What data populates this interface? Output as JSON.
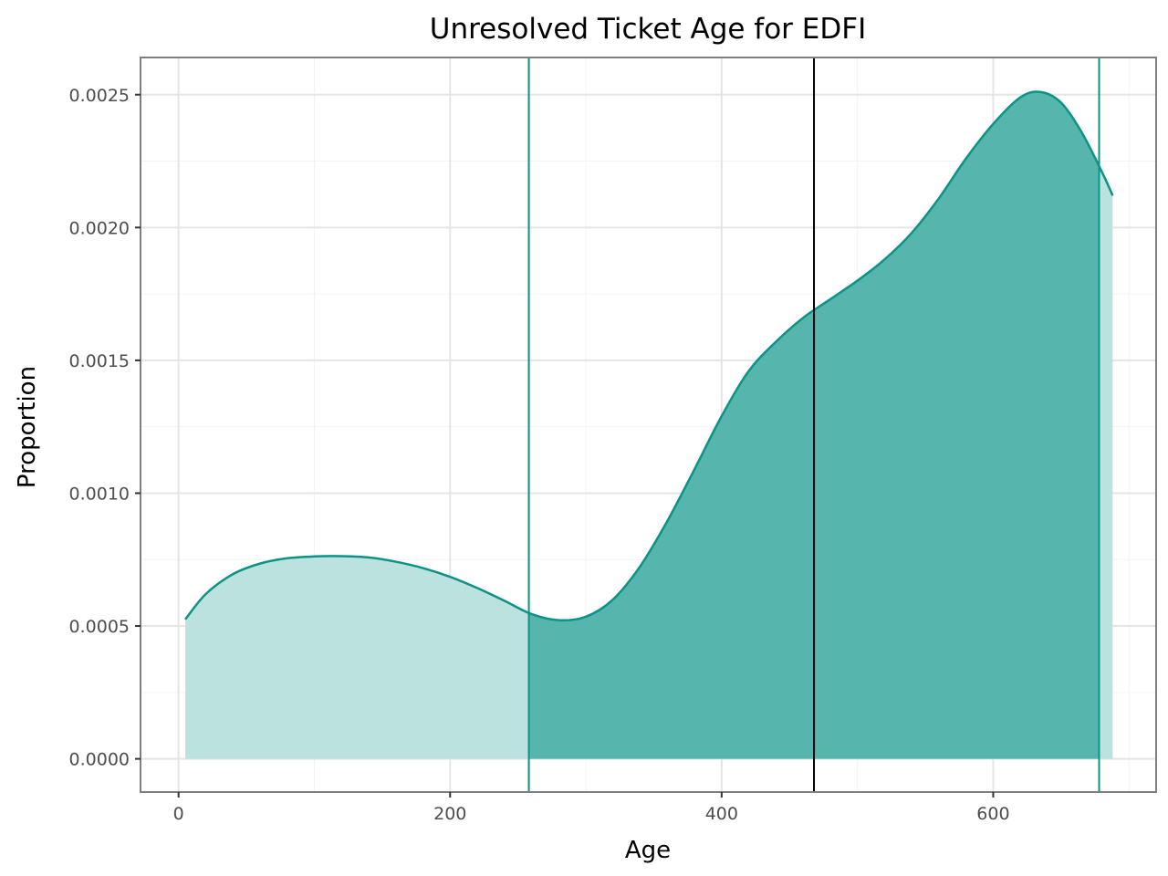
{
  "chart_data": {
    "type": "area",
    "title": "Unresolved Ticket Age for EDFI",
    "xlabel": "Age",
    "ylabel": "Proportion",
    "xlim": [
      -28,
      720
    ],
    "ylim": [
      -0.000125,
      0.00264
    ],
    "x_ticks": [
      0,
      200,
      400,
      600
    ],
    "x_tick_labels": [
      "0",
      "200",
      "400",
      "600"
    ],
    "y_ticks": [
      0,
      0.0005,
      0.001,
      0.0015,
      0.002,
      0.0025
    ],
    "y_tick_labels": [
      "0.0000",
      "0.0005",
      "0.0010",
      "0.0015",
      "0.0020",
      "0.0025"
    ],
    "grid": true,
    "density": {
      "x": [
        5,
        20,
        40,
        60,
        80,
        100,
        120,
        140,
        160,
        180,
        200,
        220,
        240,
        260,
        280,
        300,
        320,
        340,
        360,
        380,
        400,
        420,
        440,
        460,
        480,
        500,
        520,
        540,
        560,
        580,
        600,
        620,
        635,
        650,
        665,
        680,
        688
      ],
      "y": [
        0.000525,
        0.00062,
        0.000695,
        0.000735,
        0.000755,
        0.000762,
        0.000763,
        0.000758,
        0.000742,
        0.000718,
        0.000685,
        0.000643,
        0.000595,
        0.000545,
        0.000522,
        0.000535,
        0.0006,
        0.000725,
        0.000895,
        0.00109,
        0.00129,
        0.00146,
        0.00157,
        0.00166,
        0.00173,
        0.0018,
        0.00188,
        0.00198,
        0.00211,
        0.00226,
        0.00239,
        0.00249,
        0.00251,
        0.00247,
        0.00236,
        0.00221,
        0.00212
      ]
    },
    "shaded_range": [
      258,
      678
    ],
    "vlines": [
      {
        "x": 258,
        "color": "#0b9385"
      },
      {
        "x": 468,
        "color": "#000000"
      },
      {
        "x": 678,
        "color": "#0b9385"
      }
    ],
    "colors": {
      "line": "#0b9385",
      "fill_light": "#bbe2df",
      "fill_dark": "#56b5ad",
      "panel_border": "#7f7f7f",
      "grid_major": "#e5e5e5",
      "grid_minor": "#f3f3f3"
    }
  }
}
